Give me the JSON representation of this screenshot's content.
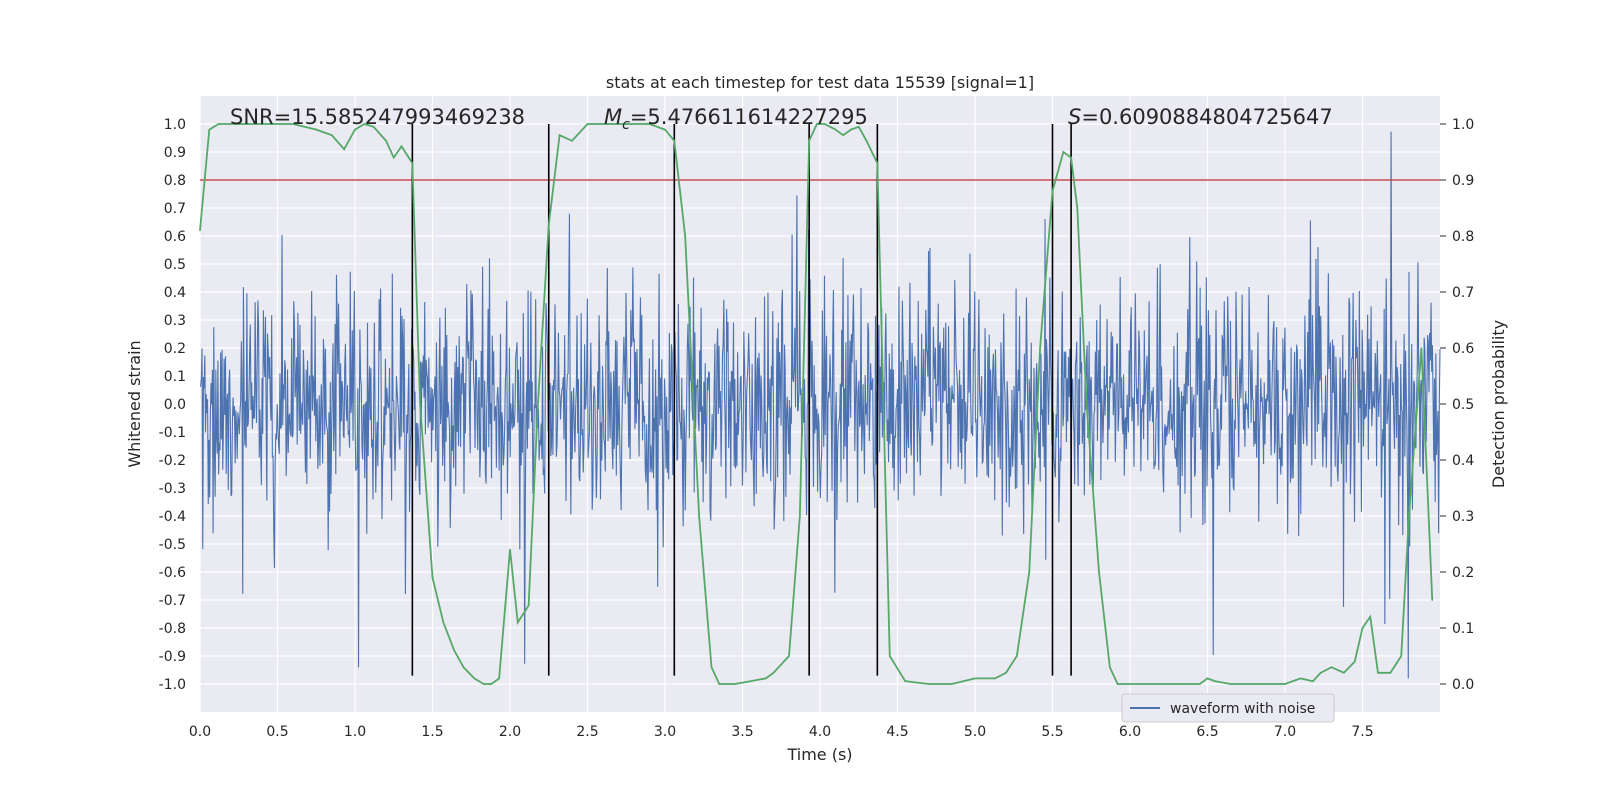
{
  "chart_data": {
    "type": "line",
    "title": "stats at each timestep for test data 15539 [signal=1]",
    "xlabel": "Time (s)",
    "ylabel_left": "Whitened strain",
    "ylabel_right": "Detection probability",
    "xlim": [
      0.0,
      8.0
    ],
    "ylim_left": [
      -1.1,
      1.1
    ],
    "ylim_right": [
      -0.05,
      1.05
    ],
    "x_ticks": [
      "0.0",
      "0.5",
      "1.0",
      "1.5",
      "2.0",
      "2.5",
      "3.0",
      "3.5",
      "4.0",
      "4.5",
      "5.0",
      "5.5",
      "6.0",
      "6.5",
      "7.0",
      "7.5"
    ],
    "y_left_ticks": [
      "1.0",
      "0.9",
      "0.8",
      "0.7",
      "0.6",
      "0.5",
      "0.4",
      "0.3",
      "0.2",
      "0.1",
      "0.0",
      "-0.1",
      "-0.2",
      "-0.3",
      "-0.4",
      "-0.5",
      "-0.6",
      "-0.7",
      "-0.8",
      "-0.9",
      "-1.0"
    ],
    "y_right_ticks": [
      "1.0",
      "0.9",
      "0.8",
      "0.7",
      "0.6",
      "0.5",
      "0.4",
      "0.3",
      "0.2",
      "0.1",
      "0.0"
    ],
    "threshold": 0.9,
    "vertical_lines": [
      1.37,
      2.25,
      3.06,
      3.93,
      4.37,
      5.5,
      5.62
    ],
    "vlines_ymin": -0.97,
    "vlines_ymax": 1.0,
    "annotations": {
      "snr": "SNR=15.585247993469238",
      "mc_letter": "M",
      "mc_sub": "c",
      "mc_value": "=5.476611614227295",
      "s_letter": "S",
      "s_value": "=0.6090884804725647"
    },
    "legend": {
      "label": "waveform with noise",
      "location": "lower-right"
    },
    "series": [
      {
        "name": "waveform with noise",
        "axis": "left",
        "color": "#4c72b0",
        "description_envelope_amplitude": 0.4
      },
      {
        "name": "detection probability",
        "axis": "right",
        "color": "#55a868",
        "x": [
          0.0,
          0.06,
          0.12,
          0.25,
          0.4,
          0.6,
          0.75,
          0.85,
          0.93,
          1.0,
          1.06,
          1.12,
          1.2,
          1.25,
          1.3,
          1.37,
          1.42,
          1.5,
          1.57,
          1.64,
          1.7,
          1.77,
          1.83,
          1.88,
          1.93,
          2.0,
          2.05,
          2.12,
          2.18,
          2.25,
          2.32,
          2.4,
          2.5,
          2.6,
          2.75,
          2.9,
          3.0,
          3.06,
          3.13,
          3.22,
          3.3,
          3.35,
          3.45,
          3.55,
          3.65,
          3.7,
          3.8,
          3.87,
          3.93,
          3.98,
          4.03,
          4.1,
          4.15,
          4.2,
          4.25,
          4.3,
          4.37,
          4.45,
          4.55,
          4.7,
          4.85,
          5.0,
          5.13,
          5.2,
          5.27,
          5.35,
          5.42,
          5.5,
          5.57,
          5.62,
          5.66,
          5.72,
          5.8,
          5.87,
          5.92,
          6.0,
          6.3,
          6.45,
          6.5,
          6.55,
          6.65,
          6.85,
          7.0,
          7.1,
          7.18,
          7.23,
          7.3,
          7.38,
          7.45,
          7.5,
          7.55,
          7.6,
          7.68,
          7.75,
          7.8,
          7.88,
          7.95
        ],
        "y": [
          0.81,
          0.99,
          1.0,
          1.0,
          1.0,
          1.0,
          0.99,
          0.98,
          0.955,
          0.99,
          1.0,
          0.995,
          0.97,
          0.94,
          0.96,
          0.93,
          0.5,
          0.19,
          0.11,
          0.06,
          0.03,
          0.01,
          0.0,
          0.0,
          0.01,
          0.24,
          0.11,
          0.14,
          0.5,
          0.82,
          0.98,
          0.97,
          1.0,
          1.0,
          1.0,
          1.0,
          0.99,
          0.97,
          0.8,
          0.3,
          0.03,
          0.0,
          0.0,
          0.005,
          0.01,
          0.02,
          0.05,
          0.3,
          0.97,
          1.0,
          1.0,
          0.99,
          0.98,
          0.99,
          0.995,
          0.97,
          0.93,
          0.05,
          0.005,
          0.0,
          0.0,
          0.01,
          0.01,
          0.02,
          0.05,
          0.2,
          0.6,
          0.88,
          0.95,
          0.94,
          0.85,
          0.5,
          0.2,
          0.03,
          0.0,
          0.0,
          0.0,
          0.0,
          0.01,
          0.005,
          0.0,
          0.0,
          0.0,
          0.01,
          0.005,
          0.02,
          0.03,
          0.02,
          0.04,
          0.1,
          0.12,
          0.02,
          0.02,
          0.05,
          0.3,
          0.6,
          0.15
        ]
      }
    ]
  }
}
